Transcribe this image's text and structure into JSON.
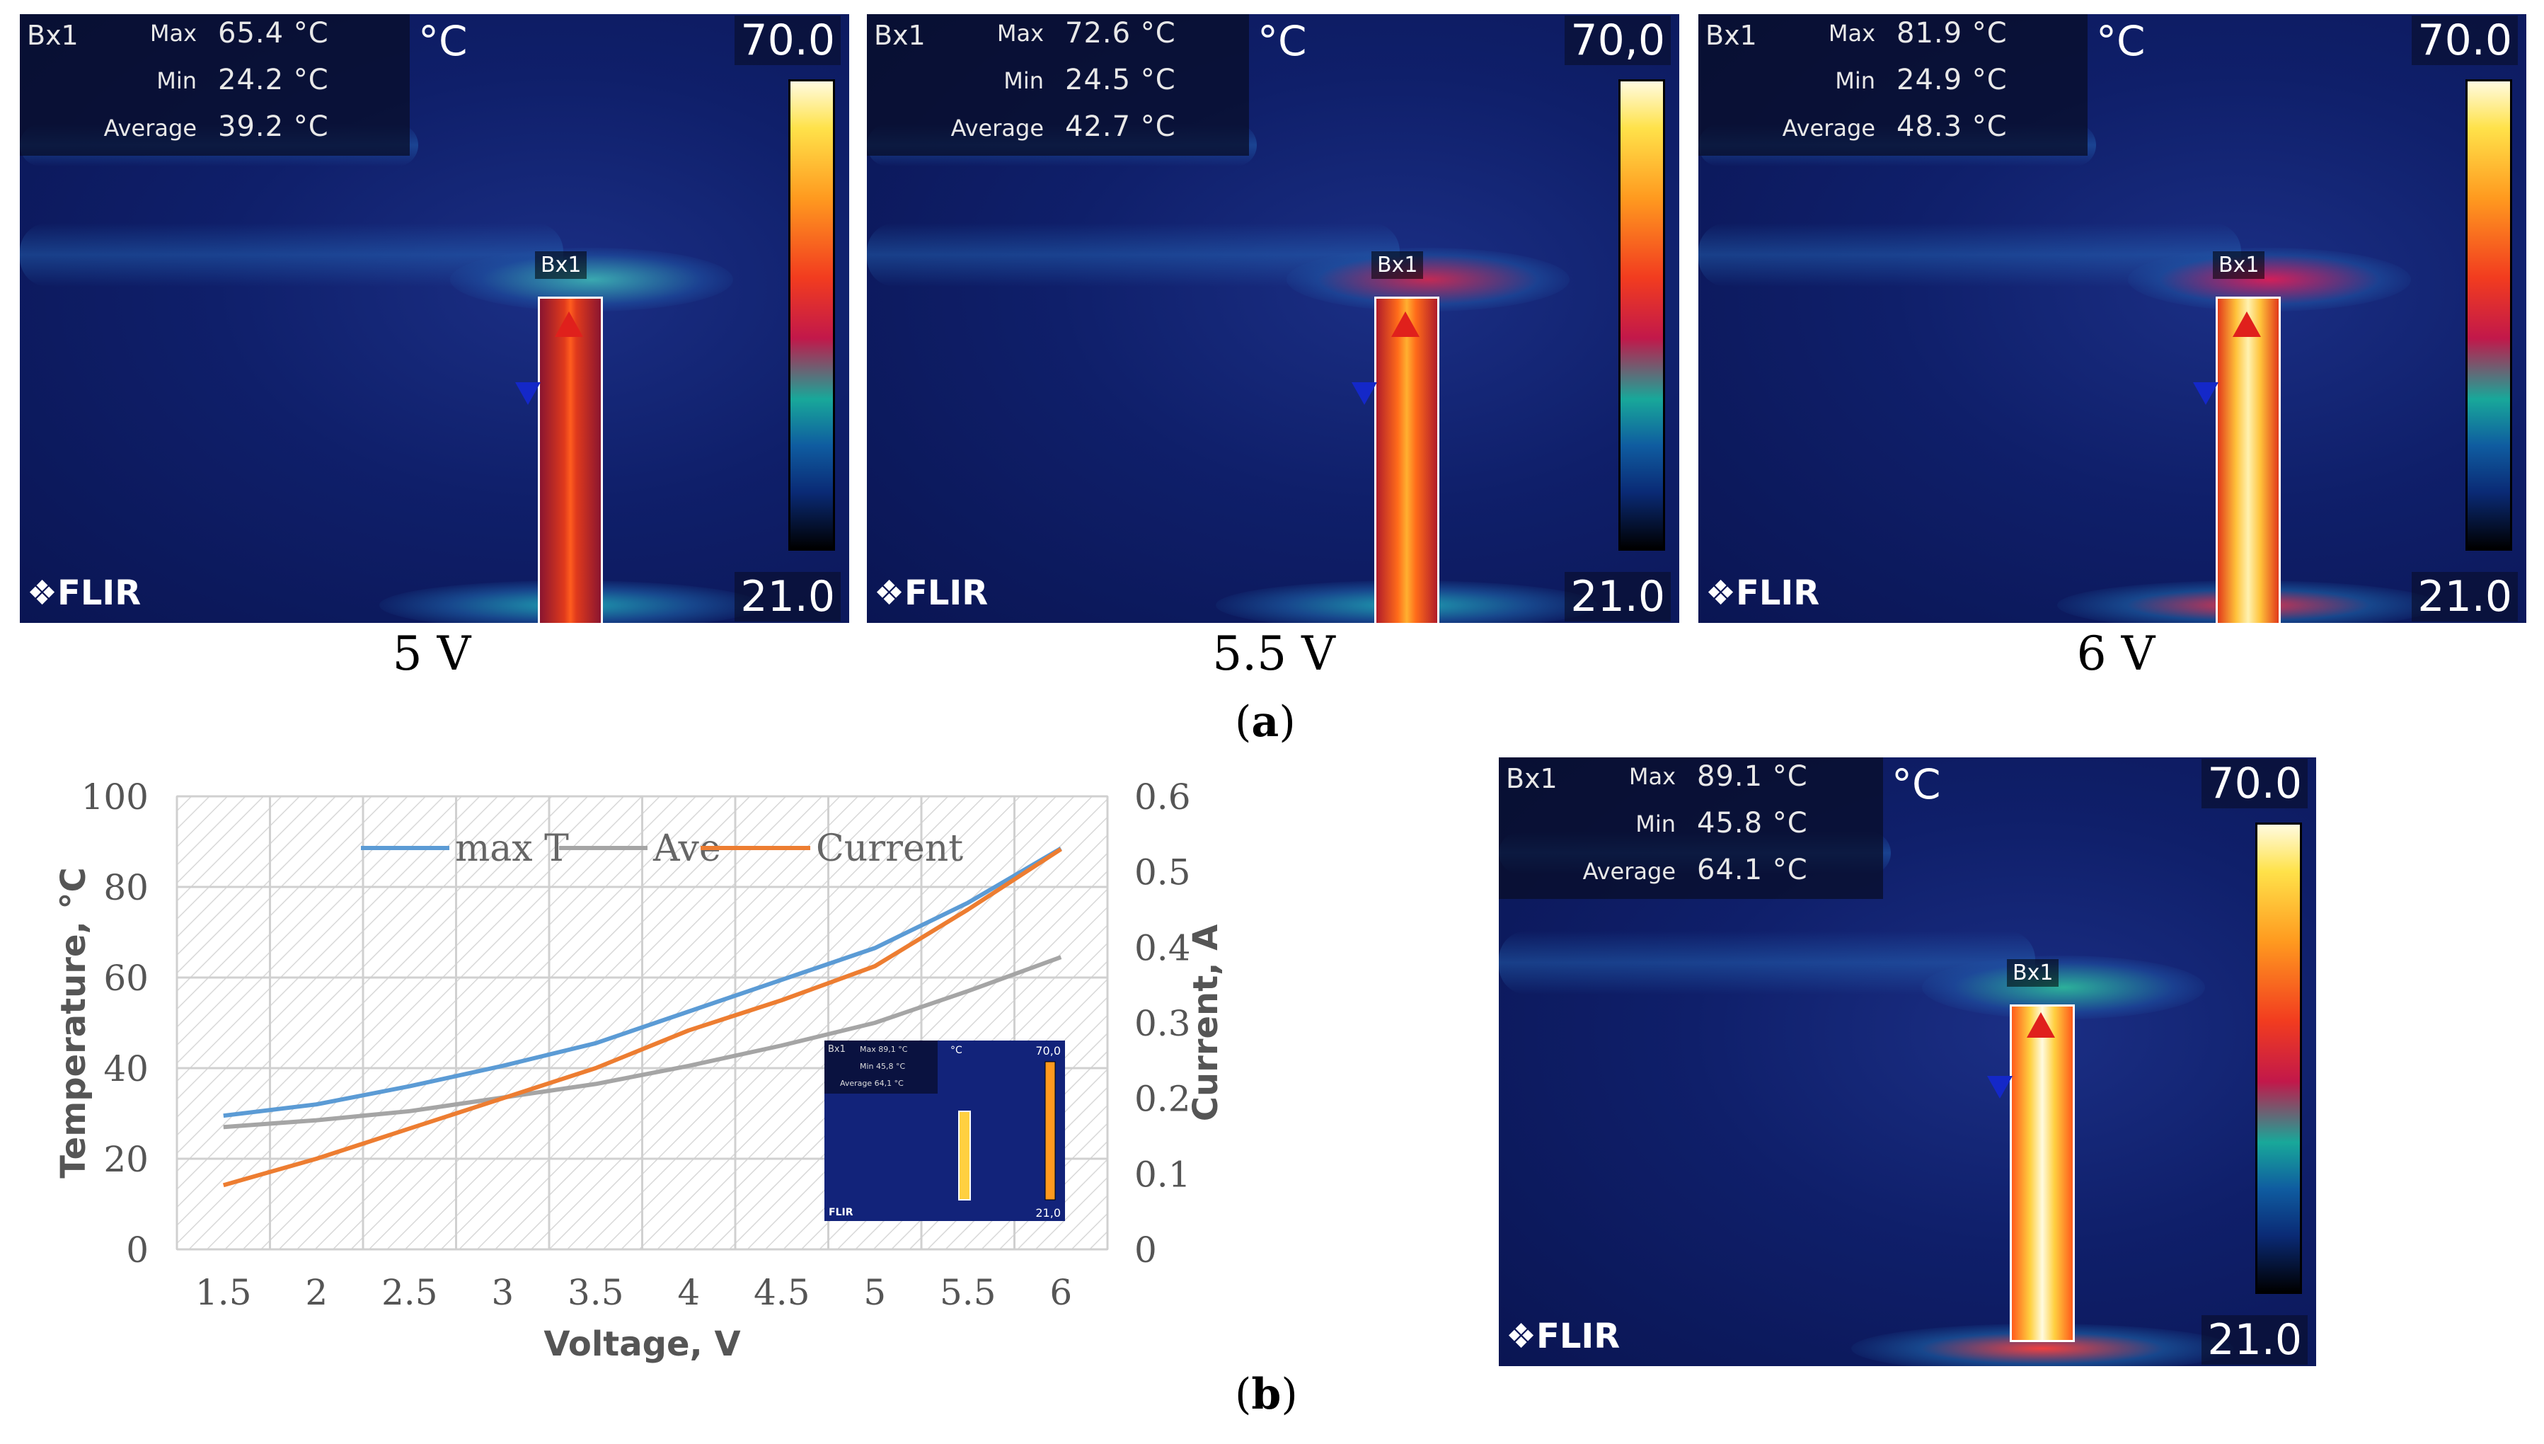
{
  "thermal_shared": {
    "box_tag": "Bx1",
    "max_label": "Max",
    "min_label": "Min",
    "avg_label": "Average",
    "unit": "°C",
    "scale_max": "70,0",
    "scale_max_alt": "70.0",
    "scale_min": "21.0",
    "scale_min_alt": "21,0",
    "brand": "FLIR"
  },
  "thermal_images": [
    {
      "caption": "5 V",
      "max": "65.4 °C",
      "min": "24.2 °C",
      "average": "39.2 °C",
      "scale_max": "70.0"
    },
    {
      "caption": "5.5 V",
      "max": "72.6 °C",
      "min": "24.5 °C",
      "average": "42.7 °C",
      "scale_max": "70,0"
    },
    {
      "caption": "6 V",
      "max": "81.9 °C",
      "min": "24.9 °C",
      "average": "48.3 °C",
      "scale_max": "70.0"
    },
    {
      "caption": "",
      "max": "89.1 °C",
      "min": "45.8 °C",
      "average": "64.1 °C",
      "scale_max": "70.0"
    }
  ],
  "inset": {
    "max": "89,1 °C",
    "min": "45,8 °C",
    "average": "64,1 °C",
    "scale_max": "70,0",
    "scale_min": "21,0"
  },
  "panel_labels": {
    "a": "a",
    "b": "b"
  },
  "colors": {
    "max_t": "#5b9bd5",
    "ave": "#a5a5a5",
    "current": "#ed7d31"
  },
  "chart_data": {
    "type": "line",
    "x": [
      1.5,
      2,
      2.5,
      3,
      3.5,
      4,
      4.5,
      5,
      5.5,
      6
    ],
    "x_tick_labels": [
      "1.5",
      "2",
      "2.5",
      "3",
      "3.5",
      "4",
      "4.5",
      "5",
      "5.5",
      "6"
    ],
    "xlabel": "Voltage, V",
    "ylabel": "Temperature, °C",
    "y2label": "Current, A",
    "ylim": [
      0,
      100
    ],
    "y2lim": [
      0,
      0.6
    ],
    "y_ticks": [
      "0",
      "20",
      "40",
      "60",
      "80",
      "100"
    ],
    "y2_ticks": [
      "0",
      "0.1",
      "0.2",
      "0.3",
      "0.4",
      "0.5",
      "0.6"
    ],
    "series": [
      {
        "name": "max T",
        "axis": "left",
        "values": [
          29.5,
          32,
          36,
          40.5,
          45.5,
          52.5,
          59.5,
          66.5,
          76.5,
          88.5
        ]
      },
      {
        "name": "Ave",
        "axis": "left",
        "values": [
          27,
          28.5,
          30.5,
          33.5,
          36.5,
          40.5,
          45,
          50,
          57,
          64.5
        ]
      },
      {
        "name": "Current",
        "axis": "right",
        "values": [
          0.085,
          0.12,
          0.16,
          0.2,
          0.24,
          0.29,
          0.33,
          0.375,
          0.45,
          0.53
        ]
      }
    ],
    "legend": "top"
  }
}
